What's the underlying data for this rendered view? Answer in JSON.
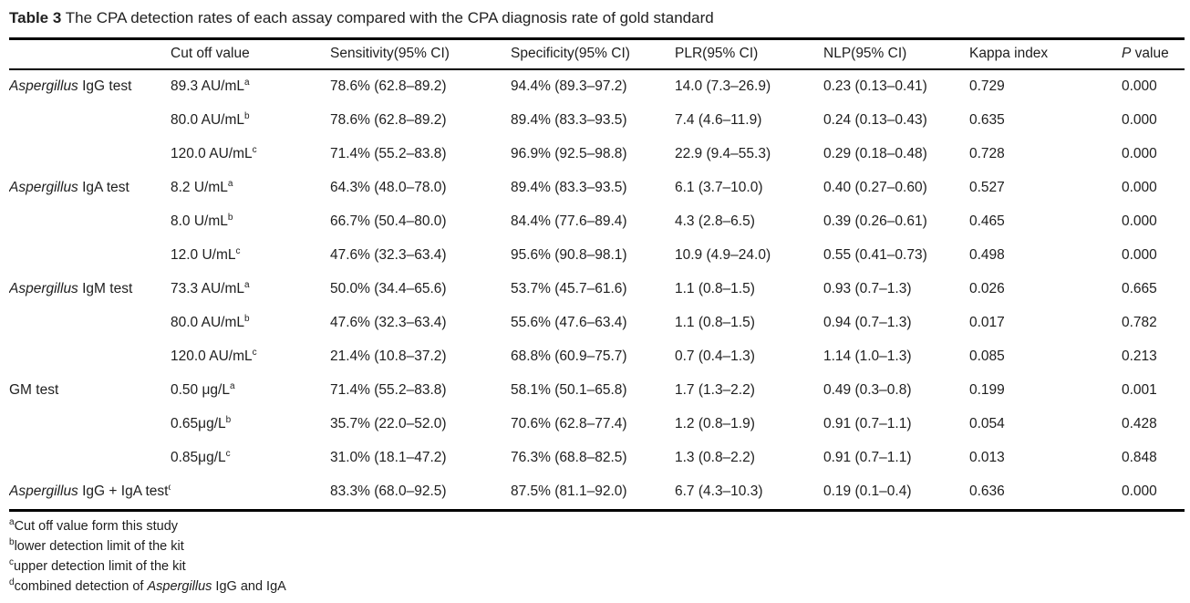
{
  "title": {
    "label": "Table 3",
    "text": " The CPA detection rates of each assay compared with the CPA diagnosis rate of gold standard"
  },
  "header": {
    "col_assay": "",
    "col_cutoff": "Cut off value",
    "col_sensitivity": "Sensitivity(95% CI)",
    "col_specificity": "Specificity(95% CI)",
    "col_plr": "PLR(95% CI)",
    "col_nlp": "NLP(95% CI)",
    "col_kappa": "Kappa index",
    "col_p_italic": "P",
    "col_p_rest": " value"
  },
  "table": {
    "rows": [
      {
        "assay_italic": "Aspergillus",
        "assay_rest": " IgG test",
        "assay_sup": "",
        "cutoff": "89.3 AU/mL",
        "cutoff_sup": "a",
        "sensitivity": "78.6% (62.8–89.2)",
        "specificity": "94.4% (89.3–97.2)",
        "plr": "14.0 (7.3–26.9)",
        "nlp": "0.23 (0.13–0.41)",
        "kappa": "0.729",
        "p": "0.000"
      },
      {
        "assay_italic": "",
        "assay_rest": "",
        "assay_sup": "",
        "cutoff": "80.0 AU/mL",
        "cutoff_sup": "b",
        "sensitivity": "78.6% (62.8–89.2)",
        "specificity": "89.4% (83.3–93.5)",
        "plr": "7.4 (4.6–11.9)",
        "nlp": "0.24 (0.13–0.43)",
        "kappa": "0.635",
        "p": "0.000"
      },
      {
        "assay_italic": "",
        "assay_rest": "",
        "assay_sup": "",
        "cutoff": "120.0 AU/mL",
        "cutoff_sup": "c",
        "sensitivity": "71.4% (55.2–83.8)",
        "specificity": "96.9% (92.5–98.8)",
        "plr": "22.9 (9.4–55.3)",
        "nlp": "0.29 (0.18–0.48)",
        "kappa": "0.728",
        "p": "0.000"
      },
      {
        "assay_italic": "Aspergillus",
        "assay_rest": " IgA test",
        "assay_sup": "",
        "cutoff": "8.2 U/mL",
        "cutoff_sup": "a",
        "sensitivity": "64.3% (48.0–78.0)",
        "specificity": "89.4% (83.3–93.5)",
        "plr": "6.1 (3.7–10.0)",
        "nlp": "0.40 (0.27–0.60)",
        "kappa": "0.527",
        "p": "0.000"
      },
      {
        "assay_italic": "",
        "assay_rest": "",
        "assay_sup": "",
        "cutoff": "8.0 U/mL",
        "cutoff_sup": "b",
        "sensitivity": "66.7% (50.4–80.0)",
        "specificity": "84.4% (77.6–89.4)",
        "plr": "4.3 (2.8–6.5)",
        "nlp": "0.39 (0.26–0.61)",
        "kappa": "0.465",
        "p": "0.000"
      },
      {
        "assay_italic": "",
        "assay_rest": "",
        "assay_sup": "",
        "cutoff": "12.0 U/mL",
        "cutoff_sup": "c",
        "sensitivity": "47.6% (32.3–63.4)",
        "specificity": "95.6% (90.8–98.1)",
        "plr": "10.9 (4.9–24.0)",
        "nlp": "0.55 (0.41–0.73)",
        "kappa": "0.498",
        "p": "0.000"
      },
      {
        "assay_italic": "Aspergillus",
        "assay_rest": " IgM test",
        "assay_sup": "",
        "cutoff": "73.3 AU/mL",
        "cutoff_sup": "a",
        "sensitivity": "50.0% (34.4–65.6)",
        "specificity": "53.7% (45.7–61.6)",
        "plr": "1.1 (0.8–1.5)",
        "nlp": "0.93 (0.7–1.3)",
        "kappa": "0.026",
        "p": "0.665"
      },
      {
        "assay_italic": "",
        "assay_rest": "",
        "assay_sup": "",
        "cutoff": "80.0 AU/mL",
        "cutoff_sup": "b",
        "sensitivity": "47.6% (32.3–63.4)",
        "specificity": "55.6% (47.6–63.4)",
        "plr": "1.1 (0.8–1.5)",
        "nlp": "0.94 (0.7–1.3)",
        "kappa": "0.017",
        "p": "0.782"
      },
      {
        "assay_italic": "",
        "assay_rest": "",
        "assay_sup": "",
        "cutoff": "120.0 AU/mL",
        "cutoff_sup": "c",
        "sensitivity": "21.4% (10.8–37.2)",
        "specificity": "68.8% (60.9–75.7)",
        "plr": "0.7 (0.4–1.3)",
        "nlp": "1.14 (1.0–1.3)",
        "kappa": "0.085",
        "p": "0.213"
      },
      {
        "assay_italic": "",
        "assay_rest": "GM test",
        "assay_sup": "",
        "cutoff": "0.50 μg/L",
        "cutoff_sup": "a",
        "sensitivity": "71.4% (55.2–83.8)",
        "specificity": "58.1% (50.1–65.8)",
        "plr": "1.7 (1.3–2.2)",
        "nlp": "0.49 (0.3–0.8)",
        "kappa": "0.199",
        "p": "0.001"
      },
      {
        "assay_italic": "",
        "assay_rest": "",
        "assay_sup": "",
        "cutoff": "0.65μg/L",
        "cutoff_sup": "b",
        "sensitivity": "35.7% (22.0–52.0)",
        "specificity": "70.6% (62.8–77.4)",
        "plr": "1.2 (0.8–1.9)",
        "nlp": "0.91 (0.7–1.1)",
        "kappa": "0.054",
        "p": "0.428"
      },
      {
        "assay_italic": "",
        "assay_rest": "",
        "assay_sup": "",
        "cutoff": "0.85μg/L",
        "cutoff_sup": "c",
        "sensitivity": "31.0% (18.1–47.2)",
        "specificity": "76.3% (68.8–82.5)",
        "plr": "1.3 (0.8–2.2)",
        "nlp": "0.91 (0.7–1.1)",
        "kappa": "0.013",
        "p": "0.848"
      },
      {
        "assay_italic": "Aspergillus",
        "assay_rest": " IgG + IgA test",
        "assay_sup": "d",
        "cutoff": "",
        "cutoff_sup": "",
        "sensitivity": "83.3% (68.0–92.5)",
        "specificity": "87.5% (81.1–92.0)",
        "plr": "6.7 (4.3–10.3)",
        "nlp": "0.19 (0.1–0.4)",
        "kappa": "0.636",
        "p": "0.000"
      }
    ]
  },
  "footnotes": [
    {
      "sup": "a",
      "pre": "Cut off value form this study",
      "italic": "",
      "post": ""
    },
    {
      "sup": "b",
      "pre": "lower detection limit of the kit",
      "italic": "",
      "post": ""
    },
    {
      "sup": "c",
      "pre": "upper detection limit of the kit",
      "italic": "",
      "post": ""
    },
    {
      "sup": "d",
      "pre": "combined detection of ",
      "italic": "Aspergillus",
      "post": " IgG and IgA"
    }
  ]
}
